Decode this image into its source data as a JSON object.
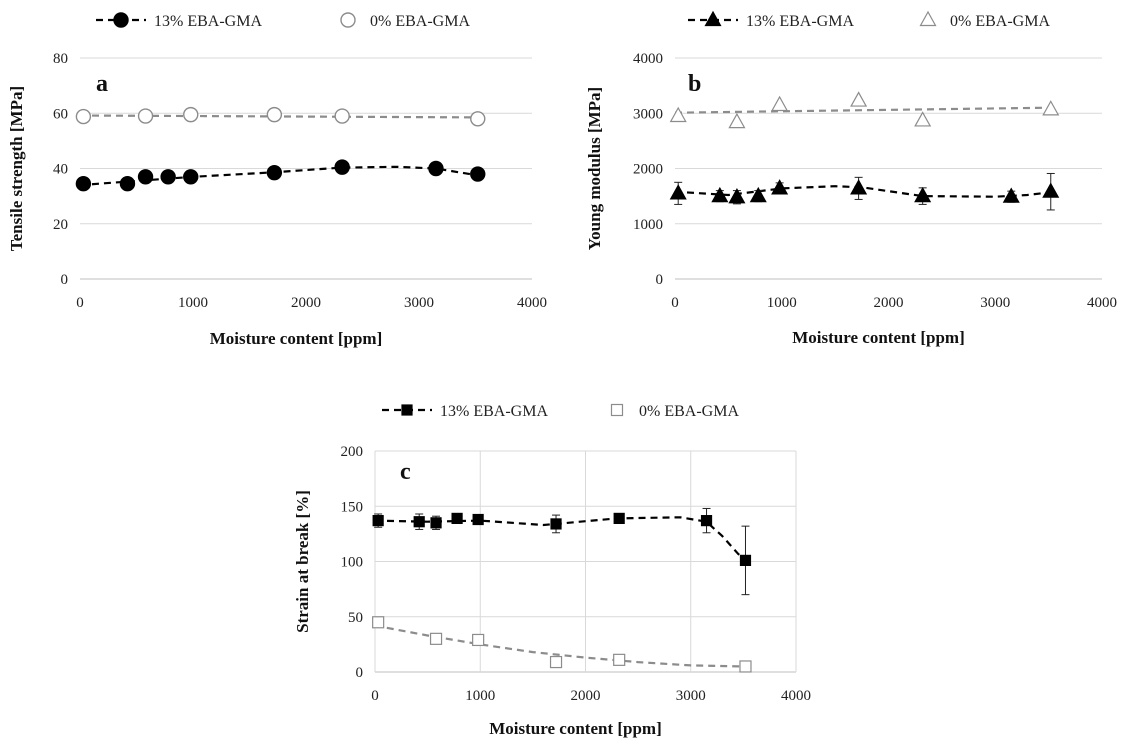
{
  "colors": {
    "black_series": "#000000",
    "gray_series": "#8c8c8c",
    "grid": "#d9d9d9",
    "axis": "#bfbfbf"
  },
  "chart_data": [
    {
      "type": "scatter",
      "panel_label": "a",
      "xlabel": "Moisture content [ppm]",
      "ylabel": "Tensile strength  [MPa]",
      "xlim": [
        0,
        4000
      ],
      "ylim": [
        0,
        80
      ],
      "xticks": [
        0,
        1000,
        2000,
        3000,
        4000
      ],
      "yticks": [
        0,
        20,
        40,
        60,
        80
      ],
      "x_tick_labels": [
        "0",
        "1000",
        "2000",
        "3000",
        "4000"
      ],
      "y_tick_labels": [
        "0",
        "20",
        "40",
        "60",
        "80"
      ],
      "grid": "horizontal",
      "legend_position": "top",
      "series": [
        {
          "name": "13% EBA-GMA",
          "marker": "filled-circle",
          "color": "#000000",
          "x": [
            30,
            420,
            580,
            780,
            980,
            1720,
            2320,
            3150,
            3520
          ],
          "y": [
            34.5,
            34.5,
            37,
            37,
            37,
            38.5,
            40.5,
            40,
            38
          ],
          "trend": [
            [
              0,
              34
            ],
            [
              600,
              35.8
            ],
            [
              1000,
              37
            ],
            [
              1700,
              38.6
            ],
            [
              2300,
              40.3
            ],
            [
              2800,
              40.6
            ],
            [
              3150,
              40
            ],
            [
              3520,
              37.5
            ]
          ]
        },
        {
          "name": "0% EBA-GMA",
          "marker": "open-circle",
          "color": "#8c8c8c",
          "x": [
            30,
            580,
            980,
            1720,
            2320,
            3520
          ],
          "y": [
            58.8,
            59,
            59.5,
            59.5,
            59,
            58
          ],
          "trend": [
            [
              0,
              59.2
            ],
            [
              3520,
              58.5
            ]
          ]
        }
      ]
    },
    {
      "type": "scatter",
      "panel_label": "b",
      "xlabel": "Moisture content [ppm]",
      "ylabel": "Young modulus [MPa]",
      "xlim": [
        0,
        4000
      ],
      "ylim": [
        0,
        4000
      ],
      "xticks": [
        0,
        1000,
        2000,
        3000,
        4000
      ],
      "yticks": [
        0,
        1000,
        2000,
        3000,
        4000
      ],
      "x_tick_labels": [
        "0",
        "1000",
        "2000",
        "3000",
        "4000"
      ],
      "y_tick_labels": [
        "0",
        "1000",
        "2000",
        "3000",
        "4000"
      ],
      "grid": "horizontal",
      "legend_position": "top",
      "series": [
        {
          "name": "13% EBA-GMA",
          "marker": "filled-triangle",
          "color": "#000000",
          "x": [
            30,
            420,
            580,
            780,
            980,
            1720,
            2320,
            3150,
            3520
          ],
          "y": [
            1550,
            1500,
            1480,
            1500,
            1640,
            1640,
            1500,
            1490,
            1580
          ],
          "error": [
            200,
            100,
            120,
            100,
            100,
            200,
            150,
            100,
            330
          ],
          "trend": [
            [
              0,
              1580
            ],
            [
              500,
              1520
            ],
            [
              1000,
              1640
            ],
            [
              1500,
              1680
            ],
            [
              1750,
              1660
            ],
            [
              2320,
              1500
            ],
            [
              3000,
              1490
            ],
            [
              3300,
              1520
            ],
            [
              3520,
              1570
            ]
          ]
        },
        {
          "name": "0% EBA-GMA",
          "marker": "open-triangle",
          "color": "#8c8c8c",
          "x": [
            30,
            580,
            980,
            1720,
            2320,
            3520
          ],
          "y": [
            2950,
            2840,
            3150,
            3230,
            2870,
            3070
          ],
          "trend": [
            [
              0,
              3010
            ],
            [
              3520,
              3100
            ]
          ]
        }
      ]
    },
    {
      "type": "scatter",
      "panel_label": "c",
      "xlabel": "Moisture content [ppm]",
      "ylabel": "Strain at break [%]",
      "xlim": [
        0,
        4000
      ],
      "ylim": [
        0,
        200
      ],
      "xticks": [
        0,
        1000,
        2000,
        3000,
        4000
      ],
      "yticks": [
        0,
        50,
        100,
        150,
        200
      ],
      "x_tick_labels": [
        "0",
        "1000",
        "2000",
        "3000",
        "4000"
      ],
      "y_tick_labels": [
        "0",
        "50",
        "100",
        "150",
        "200"
      ],
      "grid": "both",
      "legend_position": "top",
      "series": [
        {
          "name": "13% EBA-GMA",
          "marker": "filled-square",
          "color": "#000000",
          "x": [
            30,
            420,
            580,
            780,
            980,
            1720,
            2320,
            3150,
            3520
          ],
          "y": [
            137,
            136,
            135,
            139,
            138,
            134,
            139,
            137,
            101
          ],
          "error": [
            6,
            7,
            6,
            3,
            3,
            8,
            4,
            11,
            31
          ],
          "trend": [
            [
              0,
              137
            ],
            [
              500,
              136
            ],
            [
              1000,
              137
            ],
            [
              1600,
              133
            ],
            [
              2300,
              139
            ],
            [
              2900,
              140
            ],
            [
              3150,
              136
            ],
            [
              3300,
              123
            ],
            [
              3450,
              107
            ],
            [
              3520,
              101
            ]
          ]
        },
        {
          "name": "0% EBA-GMA",
          "marker": "open-square",
          "color": "#8c8c8c",
          "x": [
            30,
            580,
            980,
            1720,
            2320,
            3520
          ],
          "y": [
            45,
            30,
            29,
            9,
            11,
            5
          ],
          "trend": [
            [
              0,
              42
            ],
            [
              500,
              33
            ],
            [
              1000,
              25
            ],
            [
              1500,
              18
            ],
            [
              2000,
              13
            ],
            [
              2500,
              9
            ],
            [
              3000,
              6
            ],
            [
              3520,
              5
            ]
          ]
        }
      ]
    }
  ]
}
